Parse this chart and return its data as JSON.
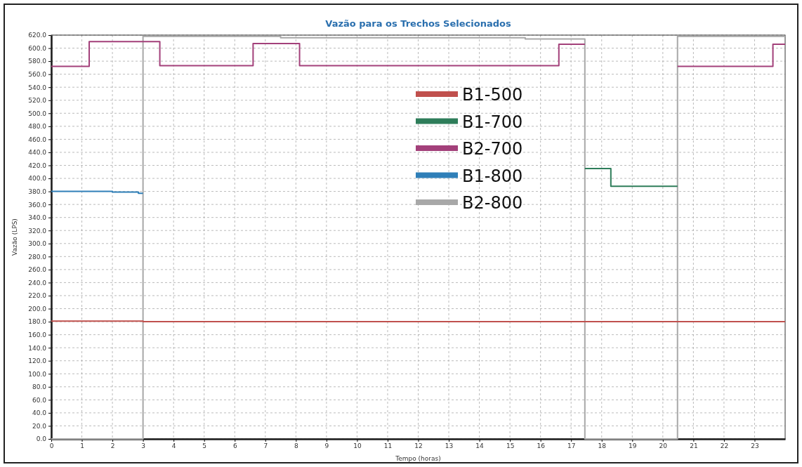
{
  "chart_data": {
    "type": "step",
    "title": "Vazão para os Trechos Selecionados",
    "xlabel": "Tempo (horas)",
    "ylabel": "Vazão (LPS)",
    "xlim": [
      0,
      24
    ],
    "xticks": [
      0,
      1,
      2,
      3,
      4,
      5,
      6,
      7,
      8,
      9,
      10,
      11,
      12,
      13,
      14,
      15,
      16,
      17,
      18,
      19,
      20,
      21,
      22,
      23
    ],
    "ylim": [
      0,
      620
    ],
    "yticks": [
      {
        "value": 0,
        "label": "0.0"
      },
      {
        "value": 20,
        "label": "20.0"
      },
      {
        "value": 40,
        "label": "40.0"
      },
      {
        "value": 60,
        "label": "60.0"
      },
      {
        "value": 80,
        "label": "80.0"
      },
      {
        "value": 100,
        "label": "100.0"
      },
      {
        "value": 120,
        "label": "120.0"
      },
      {
        "value": 140,
        "label": "140.0"
      },
      {
        "value": 160,
        "label": "160.0"
      },
      {
        "value": 180,
        "label": "180.0"
      },
      {
        "value": 200,
        "label": "200.0"
      },
      {
        "value": 220,
        "label": "220.0"
      },
      {
        "value": 240,
        "label": "240.0"
      },
      {
        "value": 260,
        "label": "260.0"
      },
      {
        "value": 280,
        "label": "280.0"
      },
      {
        "value": 300,
        "label": "300.0"
      },
      {
        "value": 320,
        "label": "320.0"
      },
      {
        "value": 340,
        "label": "340.0"
      },
      {
        "value": 360,
        "label": "360.0"
      },
      {
        "value": 380,
        "label": "380.0"
      },
      {
        "value": 400,
        "label": "400.0"
      },
      {
        "value": 420,
        "label": "420.0"
      },
      {
        "value": 440,
        "label": "440.0"
      },
      {
        "value": 460,
        "label": "460.0"
      },
      {
        "value": 480,
        "label": "480.0"
      },
      {
        "value": 500,
        "label": "500.0"
      },
      {
        "value": 520,
        "label": "520.0"
      },
      {
        "value": 540,
        "label": "540.0"
      },
      {
        "value": 560,
        "label": "560.0"
      },
      {
        "value": 580,
        "label": "580.0"
      },
      {
        "value": 600,
        "label": "600.0"
      },
      {
        "value": 620,
        "label": "620.0"
      }
    ],
    "grid": true,
    "legend": "top",
    "line_style": "solid",
    "marker": "none",
    "series": [
      {
        "name": "B1-500",
        "color": "#c0504d",
        "x": [
          0,
          3,
          24
        ],
        "values": [
          181,
          180,
          180
        ]
      },
      {
        "name": "B1-700",
        "color": "#2e7d5a",
        "x": [
          17.45,
          18.3,
          20.48
        ],
        "values": [
          415,
          388,
          388
        ]
      },
      {
        "name": "B2-700",
        "color": "#a3407a",
        "x": [
          0,
          1.24,
          3.55,
          6.6,
          8.12,
          16.6,
          17.45,
          17.46,
          20.48,
          23.6,
          24
        ],
        "values": [
          572,
          610,
          573,
          607,
          573,
          606,
          606,
          null,
          572,
          606,
          606
        ]
      },
      {
        "name": "B1-800",
        "color": "#2f7fb8",
        "x": [
          0,
          2,
          2.85,
          3
        ],
        "values": [
          380,
          379,
          377,
          377
        ]
      },
      {
        "name": "B2-800",
        "color": "#a8a8a8",
        "x": [
          0,
          3,
          7.5,
          15.5,
          17.45,
          20.48,
          24
        ],
        "values": [
          0,
          618,
          616,
          614,
          0,
          618,
          618
        ]
      }
    ]
  }
}
